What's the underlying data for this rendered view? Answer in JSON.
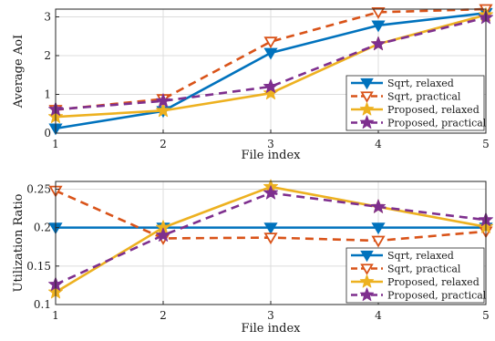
{
  "chart_data": [
    {
      "type": "line",
      "title": "",
      "xlabel": "File index",
      "ylabel": "Average AoI",
      "x": [
        1,
        2,
        3,
        4,
        5
      ],
      "x_ticks": [
        "1",
        "2",
        "3",
        "4",
        "5"
      ],
      "xlim": [
        1,
        5
      ],
      "ylim": [
        0,
        3.2
      ],
      "y_ticks": [
        0,
        1,
        2,
        3
      ],
      "y_tick_labels": [
        "0",
        "1",
        "2",
        "3"
      ],
      "grid": true,
      "legend_position": "bottom-right",
      "series": [
        {
          "name": "Sqrt, relaxed",
          "color": "#0072BD",
          "line": "solid",
          "marker": "triangle-down",
          "filled": true,
          "values": [
            0.12,
            0.57,
            2.07,
            2.78,
            3.1
          ]
        },
        {
          "name": "Sqrt, practical",
          "color": "#D95319",
          "line": "dashed",
          "marker": "triangle-down",
          "filled": false,
          "values": [
            0.6,
            0.88,
            2.36,
            3.12,
            3.2
          ]
        },
        {
          "name": "Proposed, relaxed",
          "color": "#EDB120",
          "line": "solid",
          "marker": "star",
          "filled": true,
          "values": [
            0.42,
            0.58,
            1.03,
            2.3,
            3.05
          ]
        },
        {
          "name": "Proposed, practical",
          "color": "#7E2F8E",
          "line": "dashed",
          "marker": "star",
          "filled": true,
          "values": [
            0.61,
            0.83,
            1.2,
            2.3,
            2.98
          ]
        }
      ]
    },
    {
      "type": "line",
      "title": "",
      "xlabel": "File index",
      "ylabel": "Utilization Ratio",
      "x": [
        1,
        2,
        3,
        4,
        5
      ],
      "x_ticks": [
        "1",
        "2",
        "3",
        "4",
        "5"
      ],
      "xlim": [
        1,
        5
      ],
      "ylim": [
        0.1,
        0.26
      ],
      "y_ticks": [
        0.1,
        0.15,
        0.2,
        0.25
      ],
      "y_tick_labels": [
        "0.1",
        "0.15",
        "0.2",
        "0.25"
      ],
      "grid": true,
      "legend_position": "bottom-right",
      "series": [
        {
          "name": "Sqrt, relaxed",
          "color": "#0072BD",
          "line": "solid",
          "marker": "triangle-down",
          "filled": true,
          "values": [
            0.2,
            0.2,
            0.2,
            0.2,
            0.2
          ]
        },
        {
          "name": "Sqrt, practical",
          "color": "#D95319",
          "line": "dashed",
          "marker": "triangle-down",
          "filled": false,
          "values": [
            0.248,
            0.186,
            0.187,
            0.183,
            0.195
          ]
        },
        {
          "name": "Proposed, relaxed",
          "color": "#EDB120",
          "line": "solid",
          "marker": "star",
          "filled": true,
          "values": [
            0.116,
            0.2,
            0.253,
            0.227,
            0.201
          ]
        },
        {
          "name": "Proposed, practical",
          "color": "#7E2F8E",
          "line": "dashed",
          "marker": "star",
          "filled": true,
          "values": [
            0.126,
            0.19,
            0.245,
            0.227,
            0.21
          ]
        }
      ]
    }
  ]
}
